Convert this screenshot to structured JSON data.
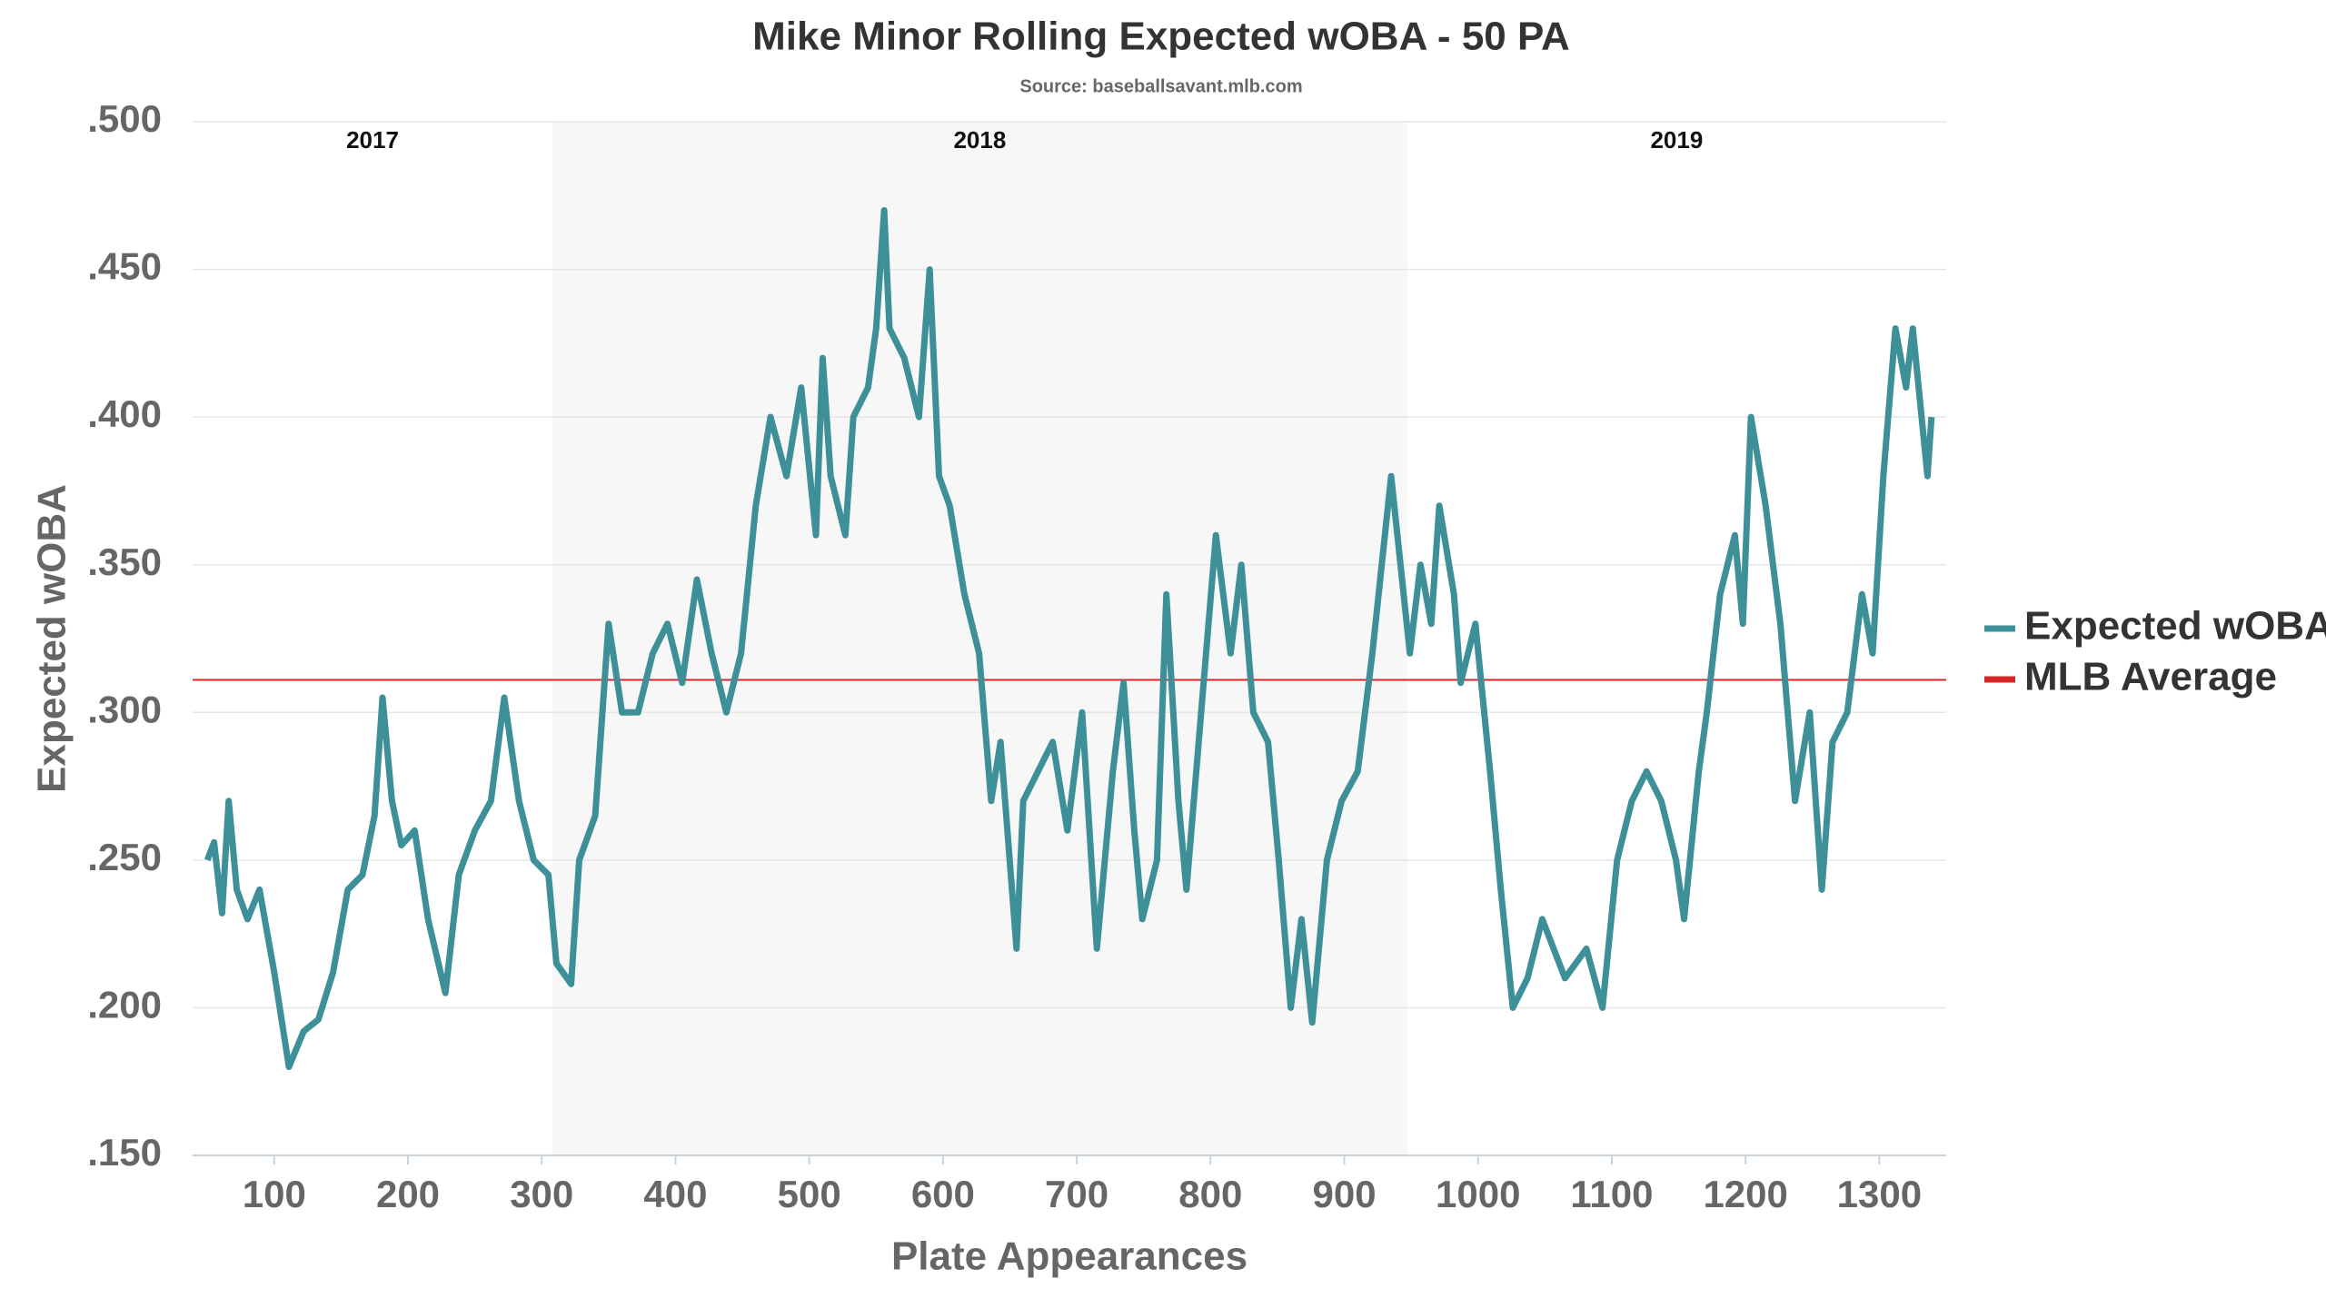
{
  "chart_data": {
    "type": "line",
    "title": "Mike Minor Rolling Expected wOBA - 50 PA",
    "subtitle": "Source: baseballsavant.mlb.com",
    "x_label": "Plate Appearances",
    "y_label": "Expected wOBA",
    "xlim": [
      39,
      1350
    ],
    "xticks": [
      100,
      200,
      300,
      400,
      500,
      600,
      700,
      800,
      900,
      1000,
      1100,
      1200,
      1300
    ],
    "ylim": [
      0.15,
      0.5
    ],
    "yticks": [
      {
        "value": 0.15,
        "label": ".150"
      },
      {
        "value": 0.2,
        "label": ".200"
      },
      {
        "value": 0.25,
        "label": ".250"
      },
      {
        "value": 0.3,
        "label": ".300"
      },
      {
        "value": 0.35,
        "label": ".350"
      },
      {
        "value": 0.4,
        "label": ".400"
      },
      {
        "value": 0.45,
        "label": ".450"
      },
      {
        "value": 0.5,
        "label": ".500"
      }
    ],
    "grid": true,
    "legend": "right",
    "seasons": [
      {
        "label": "2017",
        "start": 39,
        "end": 308,
        "shaded": false
      },
      {
        "label": "2018",
        "start": 308,
        "end": 947,
        "shaded": true
      },
      {
        "label": "2019",
        "start": 947,
        "end": 1350,
        "shaded": false
      }
    ],
    "x": [
      50,
      55,
      61,
      66,
      72,
      80,
      89,
      100,
      111,
      122,
      133,
      144,
      155,
      166,
      175,
      181,
      188,
      195,
      205,
      215,
      228,
      238,
      250,
      262,
      272,
      283,
      294,
      305,
      311,
      322,
      328,
      340,
      350,
      360,
      372,
      383,
      394,
      405,
      416,
      427,
      438,
      449,
      460,
      471,
      483,
      494,
      505,
      510,
      516,
      527,
      533,
      544,
      550,
      556,
      560,
      571,
      582,
      590,
      597,
      605,
      616,
      627,
      636,
      643,
      655,
      660,
      671,
      682,
      693,
      704,
      715,
      727,
      735,
      743,
      749,
      760,
      767,
      776,
      782,
      793,
      804,
      815,
      823,
      832,
      843,
      851,
      860,
      868,
      876,
      887,
      898,
      910,
      921,
      935,
      942,
      949,
      957,
      965,
      971,
      982,
      987,
      998,
      1009,
      1017,
      1026,
      1037,
      1048,
      1065,
      1081,
      1093,
      1104,
      1115,
      1126,
      1137,
      1148,
      1154,
      1165,
      1171,
      1181,
      1192,
      1198,
      1204,
      1215,
      1226,
      1237,
      1248,
      1257,
      1265,
      1276,
      1287,
      1295,
      1303,
      1312,
      1320,
      1325,
      1336,
      1339
    ],
    "series": [
      {
        "name": "Expected wOBA",
        "color": "#3d8f98",
        "values": [
          0.25,
          0.256,
          0.232,
          0.27,
          0.24,
          0.23,
          0.24,
          0.212,
          0.18,
          0.192,
          0.196,
          0.212,
          0.24,
          0.245,
          0.265,
          0.305,
          0.27,
          0.255,
          0.26,
          0.23,
          0.205,
          0.245,
          0.26,
          0.27,
          0.305,
          0.27,
          0.25,
          0.245,
          0.215,
          0.208,
          0.25,
          0.265,
          0.33,
          0.3,
          0.3,
          0.32,
          0.33,
          0.31,
          0.345,
          0.32,
          0.3,
          0.32,
          0.37,
          0.4,
          0.38,
          0.41,
          0.36,
          0.42,
          0.38,
          0.36,
          0.4,
          0.41,
          0.43,
          0.47,
          0.43,
          0.42,
          0.4,
          0.45,
          0.38,
          0.37,
          0.34,
          0.32,
          0.27,
          0.29,
          0.22,
          0.27,
          0.28,
          0.29,
          0.26,
          0.3,
          0.22,
          0.28,
          0.31,
          0.26,
          0.23,
          0.25,
          0.34,
          0.27,
          0.24,
          0.3,
          0.36,
          0.32,
          0.35,
          0.3,
          0.29,
          0.25,
          0.2,
          0.23,
          0.195,
          0.25,
          0.27,
          0.28,
          0.32,
          0.38,
          0.35,
          0.32,
          0.35,
          0.33,
          0.37,
          0.34,
          0.31,
          0.33,
          0.28,
          0.24,
          0.2,
          0.21,
          0.23,
          0.21,
          0.22,
          0.2,
          0.25,
          0.27,
          0.28,
          0.27,
          0.25,
          0.23,
          0.28,
          0.3,
          0.34,
          0.36,
          0.33,
          0.4,
          0.37,
          0.33,
          0.27,
          0.3,
          0.24,
          0.29,
          0.3,
          0.34,
          0.32,
          0.38,
          0.43,
          0.41,
          0.43,
          0.38,
          0.4
        ]
      }
    ],
    "reference_line": {
      "name": "MLB Average",
      "value": 0.311,
      "color": "#d62728"
    }
  }
}
